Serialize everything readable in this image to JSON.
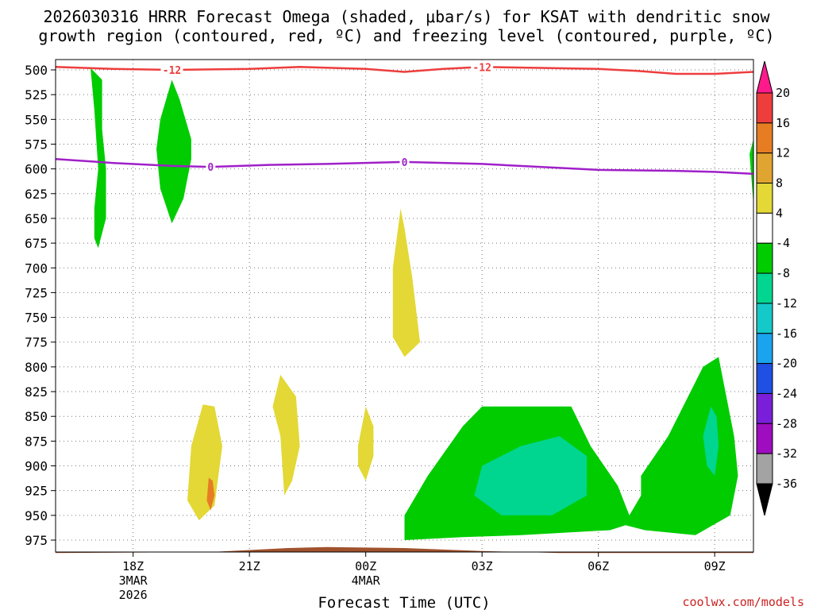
{
  "chart_data": {
    "type": "contour",
    "title": "2026030316 HRRR Forecast Omega (shaded, μbar/s) for KSAT with dendritic snow",
    "subtitle": "growth region (contoured, red, ºC) and freezing level (contoured, purple, ºC)",
    "xlabel": "Forecast Time (UTC)",
    "credit": "coolwx.com/models",
    "y_axis": {
      "ticks": [
        "500",
        "525",
        "550",
        "575",
        "600",
        "625",
        "650",
        "675",
        "700",
        "725",
        "750",
        "775",
        "800",
        "825",
        "850",
        "875",
        "900",
        "925",
        "950",
        "975"
      ],
      "range": [
        500,
        985
      ],
      "inverted": true
    },
    "x_axis": {
      "range_hours": [
        0,
        18
      ],
      "ticks": [
        {
          "hour": 2,
          "label": "18Z",
          "sub1": "3MAR",
          "sub2": "2026"
        },
        {
          "hour": 5,
          "label": "21Z",
          "sub1": "",
          "sub2": ""
        },
        {
          "hour": 8,
          "label": "00Z",
          "sub1": "4MAR",
          "sub2": ""
        },
        {
          "hour": 11,
          "label": "03Z",
          "sub1": "",
          "sub2": ""
        },
        {
          "hour": 14,
          "label": "06Z",
          "sub1": "",
          "sub2": ""
        },
        {
          "hour": 17,
          "label": "09Z",
          "sub1": "",
          "sub2": ""
        }
      ]
    },
    "grid": true,
    "colorbar": {
      "labels": [
        "20",
        "16",
        "12",
        "8",
        "4",
        "-4",
        "-8",
        "-12",
        "-16",
        "-20",
        "-24",
        "-28",
        "-32",
        "-36"
      ],
      "colors": [
        "#ff1a8c",
        "#ee3d3d",
        "#e77d23",
        "#e0a531",
        "#e3d836",
        "#ffffff",
        "#00cc00",
        "#00d690",
        "#16c9c9",
        "#1aa3ee",
        "#1f4fe3",
        "#7a1fd9",
        "#9e0dbf",
        "#a3a3a3",
        "#000000"
      ]
    },
    "contours": [
      {
        "name": "dendritic snow growth",
        "color": "#ee3d3d",
        "label": "-12",
        "points": [
          [
            0,
            497
          ],
          [
            1.5,
            499
          ],
          [
            3,
            500
          ],
          [
            5,
            499
          ],
          [
            6.3,
            497
          ],
          [
            8,
            499
          ],
          [
            9,
            502
          ],
          [
            10,
            499
          ],
          [
            11,
            497
          ],
          [
            12.5,
            498
          ],
          [
            14,
            499
          ],
          [
            15,
            501
          ],
          [
            16,
            504
          ],
          [
            17,
            504
          ],
          [
            18,
            502
          ]
        ],
        "label_hours": [
          3,
          11
        ]
      },
      {
        "name": "freezing level",
        "color": "#a020c8",
        "label": "0",
        "points": [
          [
            0,
            590
          ],
          [
            1.5,
            594
          ],
          [
            3,
            597
          ],
          [
            4,
            598
          ],
          [
            5.5,
            596
          ],
          [
            7,
            595
          ],
          [
            9,
            593
          ],
          [
            11,
            595
          ],
          [
            13,
            599
          ],
          [
            14,
            601
          ],
          [
            16,
            602
          ],
          [
            17,
            603
          ],
          [
            18,
            605
          ]
        ],
        "label_hours": [
          4,
          9
        ]
      }
    ],
    "shaded": [
      {
        "value": "-8",
        "color": "#00cc00",
        "points": [
          [
            0.9,
            498
          ],
          [
            1.0,
            540
          ],
          [
            1.1,
            600
          ],
          [
            1.0,
            640
          ],
          [
            1.0,
            670
          ],
          [
            1.1,
            680
          ],
          [
            1.3,
            650
          ],
          [
            1.3,
            600
          ],
          [
            1.2,
            560
          ],
          [
            1.2,
            510
          ]
        ]
      },
      {
        "value": "-8",
        "color": "#00cc00",
        "points": [
          [
            3.0,
            510
          ],
          [
            2.7,
            550
          ],
          [
            2.6,
            580
          ],
          [
            2.7,
            620
          ],
          [
            3.0,
            655
          ],
          [
            3.3,
            630
          ],
          [
            3.5,
            590
          ],
          [
            3.5,
            570
          ],
          [
            3.2,
            530
          ]
        ]
      },
      {
        "value": "-8",
        "color": "#00cc00",
        "points": [
          [
            17.9,
            585
          ],
          [
            18,
            570
          ],
          [
            18,
            636
          ]
        ]
      },
      {
        "value": "4",
        "color": "#e3d836",
        "points": [
          [
            8.9,
            640
          ],
          [
            8.7,
            700
          ],
          [
            8.7,
            770
          ],
          [
            9.0,
            790
          ],
          [
            9.4,
            775
          ],
          [
            9.2,
            710
          ],
          [
            9.0,
            660
          ]
        ]
      },
      {
        "value": "4",
        "color": "#e3d836",
        "points": [
          [
            3.8,
            838
          ],
          [
            3.5,
            880
          ],
          [
            3.4,
            935
          ],
          [
            3.7,
            955
          ],
          [
            4.1,
            940
          ],
          [
            4.3,
            880
          ],
          [
            4.1,
            840
          ]
        ]
      },
      {
        "value": "4",
        "color": "#e3d836",
        "points": [
          [
            5.8,
            808
          ],
          [
            5.6,
            840
          ],
          [
            5.8,
            870
          ],
          [
            5.9,
            930
          ],
          [
            6.1,
            915
          ],
          [
            6.3,
            880
          ],
          [
            6.2,
            830
          ]
        ]
      },
      {
        "value": "4",
        "color": "#e3d836",
        "points": [
          [
            8.0,
            840
          ],
          [
            7.8,
            880
          ],
          [
            7.8,
            900
          ],
          [
            8.0,
            915
          ],
          [
            8.2,
            890
          ],
          [
            8.2,
            860
          ]
        ]
      },
      {
        "value": "8",
        "color": "#e77d23",
        "points": [
          [
            3.95,
            912
          ],
          [
            3.9,
            935
          ],
          [
            4.0,
            945
          ],
          [
            4.1,
            930
          ],
          [
            4.05,
            915
          ]
        ]
      },
      {
        "value": "-8",
        "color": "#00cc00",
        "points": [
          [
            9.0,
            975
          ],
          [
            9.0,
            950
          ],
          [
            9.6,
            910
          ],
          [
            10.5,
            860
          ],
          [
            11.0,
            840
          ],
          [
            13.3,
            840
          ],
          [
            13.8,
            880
          ],
          [
            14.5,
            920
          ],
          [
            14.8,
            950
          ],
          [
            15.1,
            930
          ],
          [
            15.1,
            910
          ],
          [
            15.8,
            870
          ],
          [
            16.7,
            800
          ],
          [
            17.1,
            790
          ],
          [
            17.5,
            870
          ],
          [
            17.6,
            910
          ],
          [
            17.4,
            950
          ],
          [
            16.5,
            970
          ],
          [
            15.2,
            965
          ],
          [
            14.7,
            960
          ],
          [
            14.3,
            965
          ],
          [
            12,
            970
          ],
          [
            10.5,
            972
          ]
        ]
      },
      {
        "value": "-12",
        "color": "#00d690",
        "points": [
          [
            11.0,
            900
          ],
          [
            10.8,
            930
          ],
          [
            11.5,
            950
          ],
          [
            12.8,
            950
          ],
          [
            13.7,
            930
          ],
          [
            13.7,
            890
          ],
          [
            13.0,
            870
          ],
          [
            12.0,
            880
          ]
        ]
      },
      {
        "value": "-12",
        "color": "#00d690",
        "points": [
          [
            16.9,
            840
          ],
          [
            16.7,
            870
          ],
          [
            16.8,
            900
          ],
          [
            17.0,
            910
          ],
          [
            17.1,
            880
          ],
          [
            17.05,
            850
          ]
        ]
      }
    ],
    "terrain": {
      "color": "#a0522d",
      "points": [
        [
          0,
          988
        ],
        [
          4,
          987
        ],
        [
          6,
          983
        ],
        [
          7,
          982
        ],
        [
          9,
          983
        ],
        [
          11,
          986
        ],
        [
          13,
          988
        ],
        [
          18,
          988
        ]
      ]
    }
  }
}
